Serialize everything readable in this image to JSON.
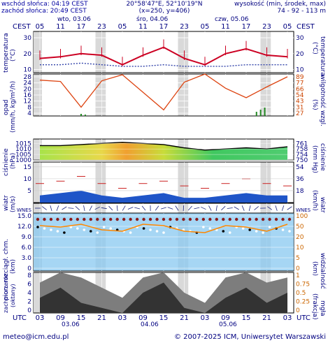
{
  "header": {
    "sunrise": "wschód słońca: 04:19 CEST",
    "sunset": "zachód słońca: 20:49 CEST",
    "coords": "20°58'47\"E, 52°10'19\"N",
    "grid": "(x=250,  y=406)",
    "height_label": "wysokość (min, środek, max)",
    "height_values": "74 - 92 - 113 m"
  },
  "top_axis": {
    "tz": "CEST",
    "hours": [
      "05",
      "11",
      "17",
      "23",
      "05",
      "11",
      "17",
      "23",
      "05",
      "11",
      "17",
      "23",
      "05"
    ],
    "days": [
      "wto, 03.06",
      "śro, 04.06",
      "czw, 05.06"
    ]
  },
  "bottom_axis": {
    "tz": "UTC",
    "hours": [
      "03",
      "09",
      "15",
      "21",
      "03",
      "09",
      "15",
      "21",
      "03",
      "09",
      "15",
      "21",
      "03"
    ],
    "days": [
      "03.06",
      "04.06",
      "05.06"
    ]
  },
  "panels": {
    "temperature": {
      "left_label": "temperatura",
      "left_unit": "(°C)",
      "right_label": "temperatura",
      "right_unit": "(°C)",
      "ticks": [
        "30",
        "20",
        "10"
      ]
    },
    "precip": {
      "left_label": "opad",
      "left_unit": "(mm/h, kg/m²/h)",
      "right_label": "wilgotność wzgl.",
      "right_unit": "(%)",
      "left_ticks": [
        "28",
        "24",
        "20",
        "16",
        "12",
        "8",
        "4"
      ],
      "right_ticks": [
        "89",
        "77",
        "66",
        "54",
        "43",
        "31",
        "27"
      ]
    },
    "pressure": {
      "left_label": "ciśnienie",
      "left_unit": "(hPa)",
      "right_label": "ciśnienie",
      "right_unit": "(mm Hg)",
      "left_ticks": [
        "1015",
        "1010",
        "1005",
        "1000"
      ],
      "right_ticks": [
        "761",
        "758",
        "754",
        "750"
      ]
    },
    "wind": {
      "left_label": "wiatr",
      "left_unit": "(m/s)",
      "right_label": "wiatr",
      "right_unit": "(km/h)",
      "left_ticks": [
        "15",
        "10",
        "5"
      ],
      "right_ticks": [
        "54",
        "36",
        "18"
      ]
    },
    "wind_dir": {
      "left": "W N E S",
      "right": "W N E S"
    },
    "visibility": {
      "left_label": "pion. rozciągł. chm.",
      "left_unit": "(km)",
      "right_label": "widzialność",
      "right_unit": "(km)",
      "left_ticks": [
        "15.0",
        "12.0",
        "9.0",
        "6.0",
        "3.0",
        "0"
      ],
      "right_ticks": [
        "100",
        "50",
        "20",
        "10",
        "5",
        "0"
      ]
    },
    "cloud": {
      "left_label": "zachmurzenie",
      "left_unit": "(oktany)",
      "right_label": "mgła",
      "right_unit": "(frakcja)",
      "left_ticks": [
        "8",
        "6",
        "4",
        "2",
        "0"
      ],
      "right_ticks": [
        "1",
        "0.75",
        "0.5",
        "0.25",
        "0"
      ]
    }
  },
  "footer": {
    "email": "meteo@icm.edu.pl",
    "copyright": "© 2007-2025 ICM, Uniwersytet Warszawski"
  },
  "colors": {
    "night": "#d9d9d9",
    "temp": "#cc0022",
    "dew": "#3344aa",
    "humidity": "#dd4411",
    "precip": "#228822",
    "wind": "#1144aa",
    "sky": "#88c8f0",
    "gust": "#cc2222"
  },
  "chart_data": [
    {
      "type": "line",
      "title": "temperatura",
      "x": [
        "03 UTC",
        "09 UTC",
        "15 UTC",
        "21 UTC",
        "03 UTC",
        "09 UTC",
        "15 UTC",
        "21 UTC",
        "03 UTC",
        "09 UTC",
        "15 UTC",
        "21 UTC",
        "03 UTC"
      ],
      "series": [
        {
          "values": [
            17,
            18,
            20,
            19,
            13,
            19,
            24,
            17,
            13,
            20,
            23,
            19,
            18
          ]
        },
        {
          "values": [
            13,
            13,
            14,
            13,
            12,
            12,
            13,
            12,
            12,
            12,
            13,
            13,
            13
          ]
        }
      ],
      "ylim": [
        10,
        33
      ]
    },
    {
      "type": "line",
      "title": "wilgotność wzgl.",
      "x": [
        "03",
        "09",
        "15",
        "21",
        "03",
        "09",
        "15",
        "21",
        "03",
        "09",
        "15",
        "21",
        "03"
      ],
      "series": [
        {
          "values": [
            80,
            78,
            40,
            79,
            88,
            62,
            36,
            77,
            89,
            68,
            54,
            70,
            85
          ]
        }
      ],
      "ylim": [
        27,
        89
      ]
    },
    {
      "type": "line",
      "title": "ciśnienie",
      "x": [
        "03",
        "09",
        "15",
        "21",
        "03",
        "09",
        "15",
        "21",
        "03",
        "09",
        "15",
        "21",
        "03"
      ],
      "series": [
        {
          "values": [
            1013,
            1013,
            1014,
            1015,
            1016,
            1015,
            1014,
            1011,
            1009,
            1010,
            1011,
            1010,
            1012
          ]
        }
      ],
      "ylim": [
        1000,
        1019
      ]
    },
    {
      "type": "area",
      "title": "wiatr",
      "x": [
        "03",
        "09",
        "15",
        "21",
        "03",
        "09",
        "15",
        "21",
        "03",
        "09",
        "15",
        "21",
        "03"
      ],
      "series": [
        {
          "values": [
            3,
            4,
            5,
            3,
            2,
            3,
            4,
            2,
            2,
            3,
            4,
            3,
            3
          ]
        },
        {
          "values": [
            8,
            9,
            11,
            8,
            6,
            8,
            9,
            7,
            6,
            8,
            10,
            8,
            7
          ]
        }
      ],
      "ylim": [
        0,
        17
      ]
    }
  ]
}
